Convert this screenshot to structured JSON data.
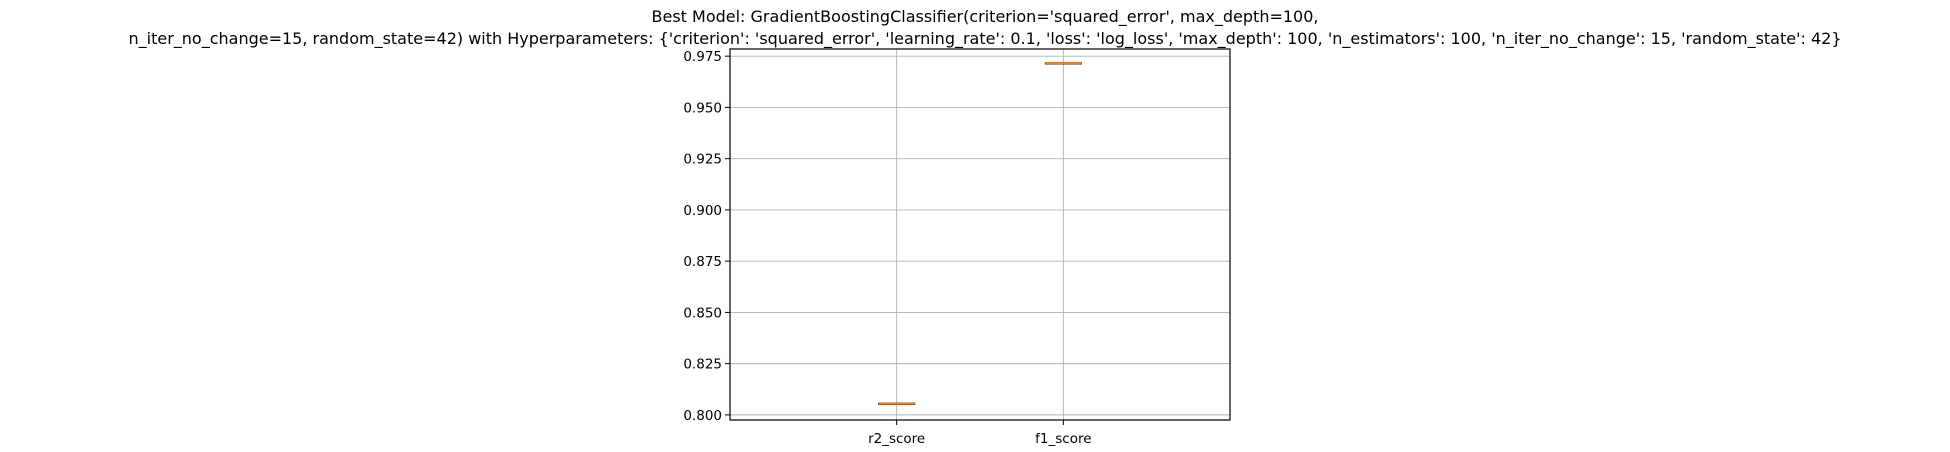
{
  "chart_data": {
    "type": "boxplot",
    "title_lines": [
      "Best Model: GradientBoostingClassifier(criterion='squared_error', max_depth=100,",
      "n_iter_no_change=15, random_state=42) with Hyperparameters: {'criterion': 'squared_error', 'learning_rate': 0.1, 'loss': 'log_loss', 'max_depth': 100, 'n_estimators': 100, 'n_iter_no_change': 15, 'random_state': 42}"
    ],
    "categories": [
      "r2_score",
      "f1_score"
    ],
    "values": [
      0.8054,
      0.9715
    ],
    "xlabel": "",
    "ylabel": "",
    "ylim": [
      0.7975,
      0.9785
    ],
    "yticks": [
      0.8,
      0.825,
      0.85,
      0.875,
      0.9,
      0.925,
      0.95,
      0.975
    ],
    "ytick_labels": [
      "0.800",
      "0.825",
      "0.850",
      "0.875",
      "0.900",
      "0.925",
      "0.950",
      "0.975"
    ],
    "grid": true,
    "colors": {
      "median": "#ff7f0e",
      "box": "#000000",
      "grid": "#b0b0b0",
      "axes": "#000000"
    }
  }
}
